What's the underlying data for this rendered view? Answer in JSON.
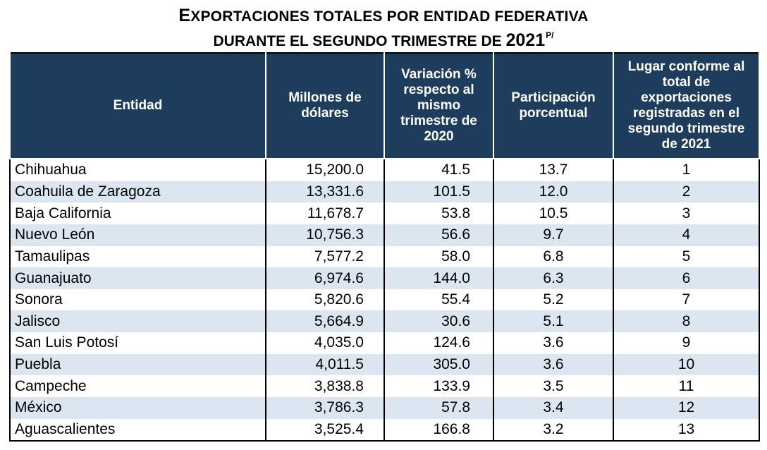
{
  "title": {
    "line1_cap": "E",
    "line1_rest": "XPORTACIONES TOTALES POR ENTIDAD FEDERATIVA",
    "line2_text": "DURANTE EL SEGUNDO TRIMESTRE DE ",
    "line2_year": "2021",
    "line2_note": "P/"
  },
  "table": {
    "headers": [
      "Entidad",
      "Millones de dólares",
      "Variación % respecto al mismo trimestre de 2020",
      "Participación porcentual",
      "Lugar conforme al total de exportaciones registradas en el segundo trimestre de 2021"
    ],
    "rows": [
      [
        "Chihuahua",
        "15,200.0",
        "41.5",
        "13.7",
        "1"
      ],
      [
        "Coahuila de Zaragoza",
        "13,331.6",
        "101.5",
        "12.0",
        "2"
      ],
      [
        "Baja California",
        "11,678.7",
        "53.8",
        "10.5",
        "3"
      ],
      [
        "Nuevo León",
        "10,756.3",
        "56.6",
        "9.7",
        "4"
      ],
      [
        "Tamaulipas",
        "7,577.2",
        "58.0",
        "6.8",
        "5"
      ],
      [
        "Guanajuato",
        "6,974.6",
        "144.0",
        "6.3",
        "6"
      ],
      [
        "Sonora",
        "5,820.6",
        "55.4",
        "5.2",
        "7"
      ],
      [
        "Jalisco",
        "5,664.9",
        "30.6",
        "5.1",
        "8"
      ],
      [
        "San Luis Potosí",
        "4,035.0",
        "124.6",
        "3.6",
        "9"
      ],
      [
        "Puebla",
        "4,011.5",
        "305.0",
        "3.6",
        "10"
      ],
      [
        "Campeche",
        "3,838.8",
        "133.9",
        "3.5",
        "11"
      ],
      [
        "México",
        "3,786.3",
        "57.8",
        "3.4",
        "12"
      ],
      [
        "Aguascalientes",
        "3,525.4",
        "166.8",
        "3.2",
        "13"
      ]
    ]
  },
  "colors": {
    "header_bg": "#1e3d5c",
    "header_text": "#ffffff",
    "stripe_bg": "#dce6f1"
  }
}
